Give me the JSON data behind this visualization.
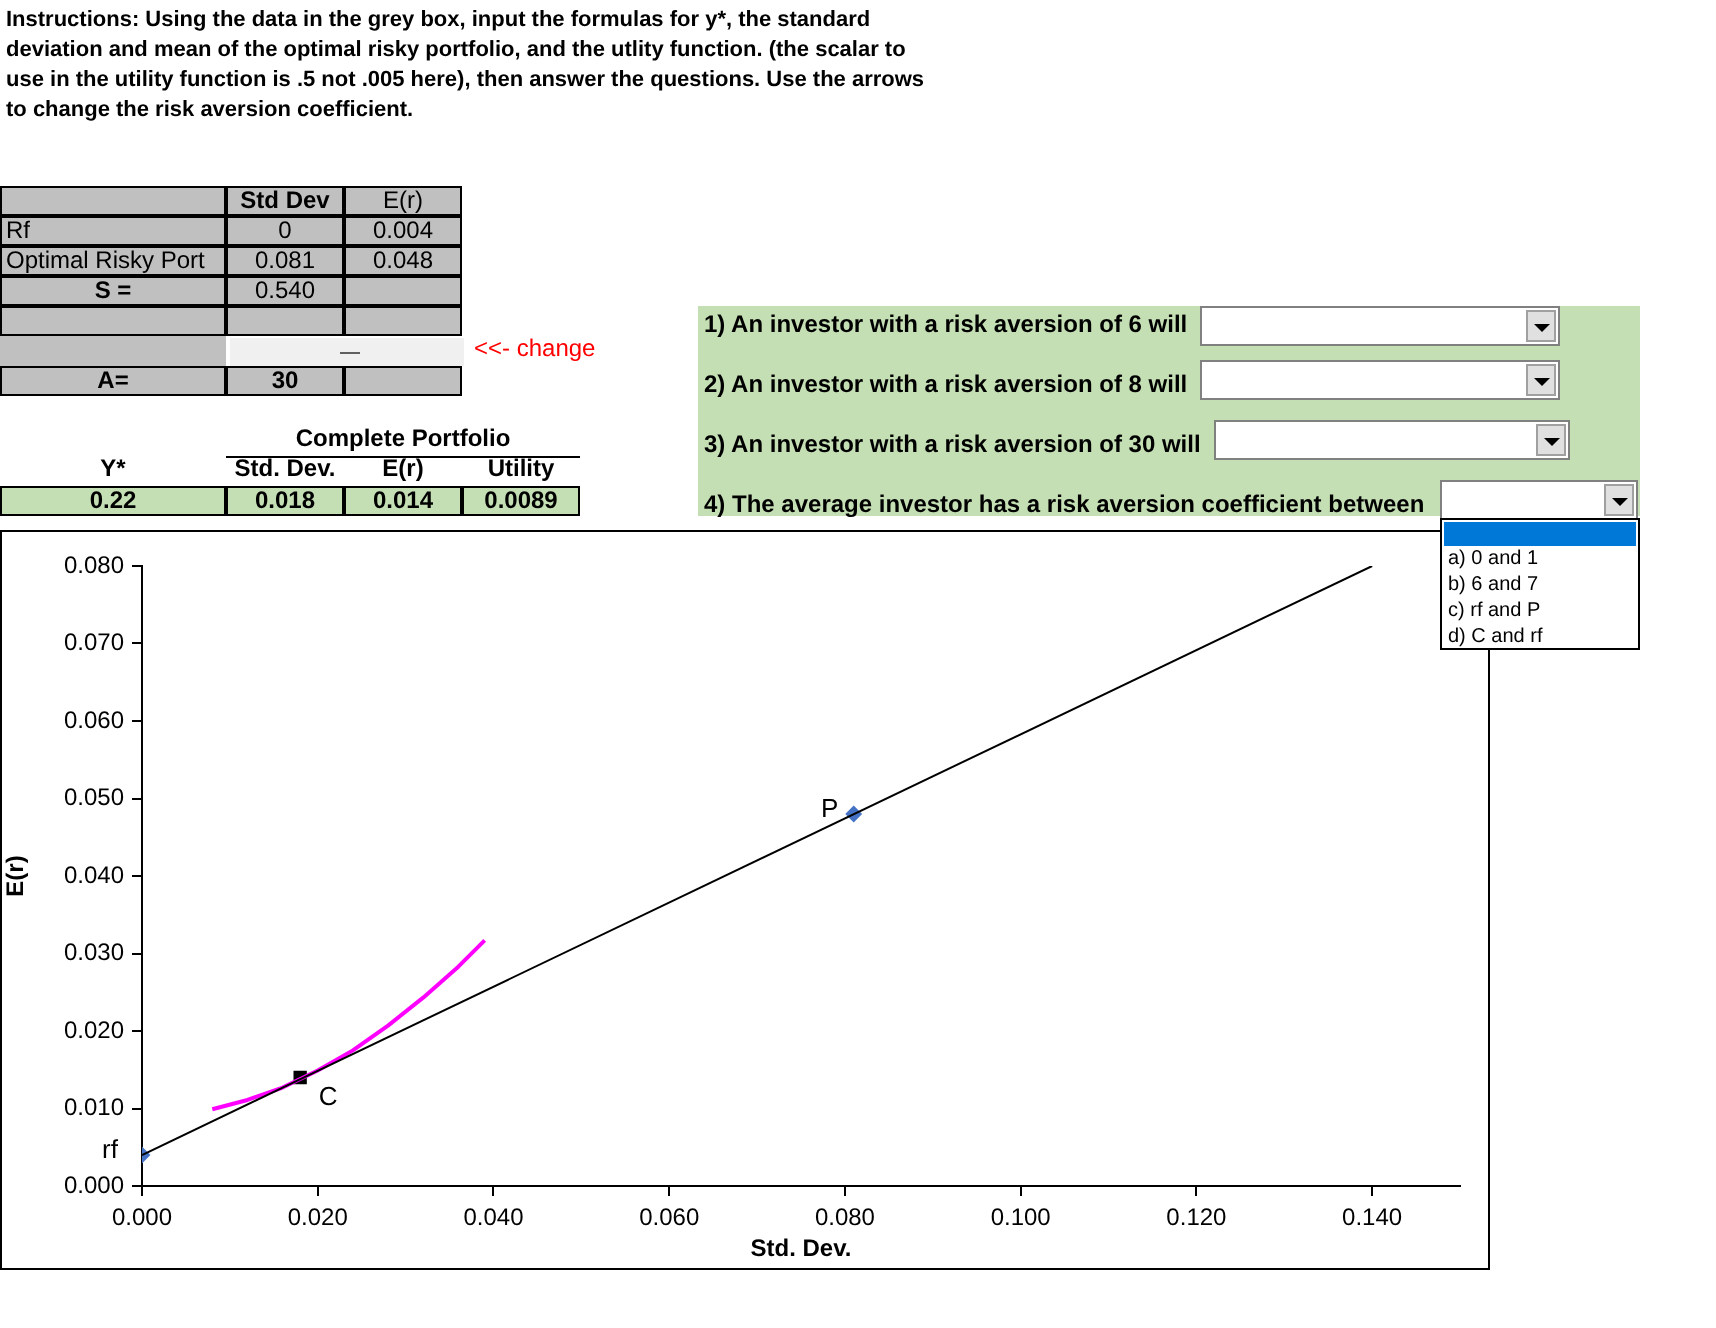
{
  "chart_data": [
    {
      "type": "other",
      "title": "Instructions: Using the data in the grey box, input the formulas for y*, the standard deviation and mean of the optimal risky portfolio, and the utlity function.  (the scalar to use in the utility function is .5 not .005 here), then answer the questions.  Use the arrows to change the risk aversion coefficient.",
      "annotations": [
        "Std Dev",
        "E(r)",
        "Rf",
        "0",
        "0.004",
        "Optimal Risky Port",
        "0.081",
        "0.048",
        "S =",
        "0.540",
        "<<- change",
        "A=",
        "30",
        "Complete Portfolio",
        "Y*",
        "Std. Dev.",
        "E(r)",
        "Utility",
        "0.22",
        "0.018",
        "0.014",
        "0.0089",
        "1) An investor with a risk aversion of 6 will",
        "2) An investor with a risk aversion of 8 will",
        "3) An investor with a risk aversion of 30 will",
        "4) The average investor has a risk aversion coefficient between",
        "a) 0 and 1",
        "b) 6 and 7",
        "c) rf and P",
        "d) C and rf"
      ]
    },
    {
      "type": "scatter",
      "xlabel": "Std. Dev.",
      "ylabel": "E(r)",
      "xlim": [
        0,
        0.15
      ],
      "ylim": [
        0,
        0.08
      ],
      "xticks": [
        {
          "value": 0,
          "label": "0.000"
        },
        {
          "value": 0.02,
          "label": "0.020"
        },
        {
          "value": 0.04,
          "label": "0.040"
        },
        {
          "value": 0.06,
          "label": "0.060"
        },
        {
          "value": 0.08,
          "label": "0.080"
        },
        {
          "value": 0.1,
          "label": "0.100"
        },
        {
          "value": 0.12,
          "label": "0.120"
        },
        {
          "value": 0.14,
          "label": "0.140"
        }
      ],
      "yticks": [
        {
          "value": 0,
          "label": "0.000"
        },
        {
          "value": 0.01,
          "label": "0.010"
        },
        {
          "value": 0.02,
          "label": "0.020"
        },
        {
          "value": 0.03,
          "label": "0.030"
        },
        {
          "value": 0.04,
          "label": "0.040"
        },
        {
          "value": 0.05,
          "label": "0.050"
        },
        {
          "value": 0.06,
          "label": "0.060"
        },
        {
          "value": 0.07,
          "label": "0.070"
        },
        {
          "value": 0.08,
          "label": "0.080"
        }
      ],
      "grid": false,
      "legend": false,
      "series": [
        {
          "type": "line",
          "color": "#000000",
          "marker": "none",
          "x": [
            0,
            0.14
          ],
          "values": [
            0.004,
            0.08
          ]
        },
        {
          "type": "line",
          "color": "#ff00ff",
          "marker": "none",
          "x": [
            0.008,
            0.012,
            0.016,
            0.02,
            0.024,
            0.028,
            0.032,
            0.036,
            0.039
          ],
          "values": [
            0.0099,
            0.0111,
            0.0127,
            0.0149,
            0.0175,
            0.0207,
            0.0243,
            0.0283,
            0.0317
          ]
        },
        {
          "type": "scatter",
          "color": "#4472c4",
          "marker": "diamond",
          "x": [
            0,
            0.081
          ],
          "values": [
            0.004,
            0.048
          ]
        },
        {
          "type": "scatter",
          "color": "#000000",
          "marker": "square",
          "x": [
            0.018
          ],
          "values": [
            0.014
          ]
        }
      ],
      "annotations": [
        {
          "text": "rf",
          "x": 0,
          "y": 0.004
        },
        {
          "text": "P",
          "x": 0.081,
          "y": 0.048
        },
        {
          "text": "C",
          "x": 0.018,
          "y": 0.014
        }
      ]
    }
  ]
}
